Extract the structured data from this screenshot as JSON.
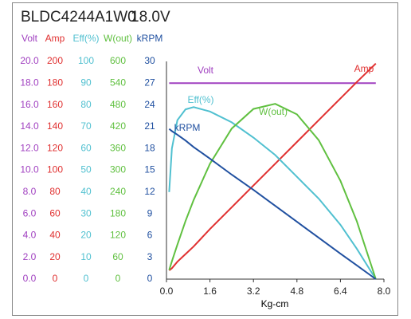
{
  "chart_data": {
    "type": "line",
    "title": "BLDC4244A1W0",
    "subtitle": "18.0V",
    "xlabel": "Kg-cm",
    "xlim": [
      0,
      8
    ],
    "xticks": [
      {
        "value": 0,
        "label": "0.0"
      },
      1.6,
      3.2,
      4.8,
      6.4,
      {
        "value": 8,
        "label": "8.0"
      }
    ],
    "x": [
      0.1,
      0.2,
      0.4,
      0.7,
      1.0,
      1.6,
      2.4,
      3.2,
      4.0,
      4.8,
      5.6,
      6.4,
      7.0,
      7.7
    ],
    "series": [
      {
        "name": "Volt",
        "color": "#a040c0",
        "ylim": [
          0,
          20
        ],
        "yticks": [
          {
            "value": 0,
            "label": "0.0"
          },
          {
            "value": 2,
            "label": "2.0"
          },
          {
            "value": 4,
            "label": "4.0"
          },
          {
            "value": 6,
            "label": "6.0"
          },
          {
            "value": 8,
            "label": "8.0"
          },
          {
            "value": 10,
            "label": "10.0"
          },
          {
            "value": 12,
            "label": "12.0"
          },
          {
            "value": 14,
            "label": "14.0"
          },
          {
            "value": 16,
            "label": "16.0"
          },
          {
            "value": 18,
            "label": "18.0"
          },
          {
            "value": 20,
            "label": "20.0"
          }
        ],
        "values": [
          18,
          18,
          18,
          18,
          18,
          18,
          18,
          18,
          18,
          18,
          18,
          18,
          18,
          18
        ]
      },
      {
        "name": "Amp",
        "color": "#e03030",
        "ylim": [
          0,
          200
        ],
        "yticks": [
          0,
          20,
          40,
          60,
          80,
          100,
          120,
          140,
          160,
          180,
          200
        ],
        "values": [
          8,
          10,
          16,
          23,
          30,
          46,
          66,
          86,
          106,
          126,
          146,
          166,
          181,
          198
        ]
      },
      {
        "name": "Eff(%)",
        "color": "#50c0d0",
        "ylim": [
          0,
          100
        ],
        "yticks": [
          0,
          10,
          20,
          30,
          40,
          50,
          60,
          70,
          80,
          90,
          100
        ],
        "values": [
          40,
          60,
          73,
          78,
          79,
          77,
          72,
          65,
          57,
          47,
          37,
          25,
          14,
          0
        ]
      },
      {
        "name": "W(out)",
        "color": "#60c040",
        "ylim": [
          0,
          600
        ],
        "yticks": [
          0,
          60,
          120,
          180,
          240,
          300,
          360,
          420,
          480,
          540,
          600
        ],
        "values": [
          25,
          49,
          95,
          160,
          218,
          318,
          415,
          469,
          483,
          454,
          383,
          271,
          160,
          0
        ]
      },
      {
        "name": "kRPM",
        "color": "#2050a0",
        "ylim": [
          0,
          30
        ],
        "yticks": [
          0,
          3,
          6,
          9,
          12,
          15,
          18,
          21,
          24,
          27,
          30
        ],
        "values": [
          20.7,
          20.4,
          19.9,
          19.1,
          18.2,
          16.6,
          14.4,
          12.3,
          10.1,
          7.9,
          5.7,
          3.5,
          1.9,
          0
        ]
      }
    ]
  }
}
